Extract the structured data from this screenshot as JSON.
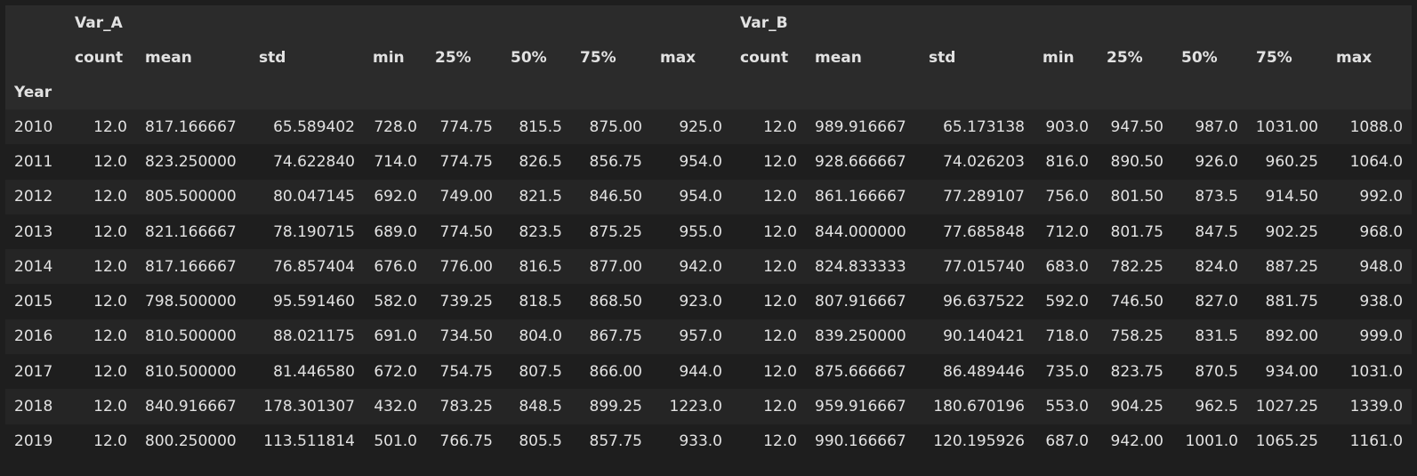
{
  "table": {
    "group_headers": [
      "Var_A",
      "Var_B"
    ],
    "stat_headers": [
      "count",
      "mean",
      "std",
      "min",
      "25%",
      "50%",
      "75%",
      "max"
    ],
    "index_name": "Year",
    "rows": [
      {
        "year": "2010",
        "a": [
          "12.0",
          "817.166667",
          "65.589402",
          "728.0",
          "774.75",
          "815.5",
          "875.00",
          "925.0"
        ],
        "b": [
          "12.0",
          "989.916667",
          "65.173138",
          "903.0",
          "947.50",
          "987.0",
          "1031.00",
          "1088.0"
        ]
      },
      {
        "year": "2011",
        "a": [
          "12.0",
          "823.250000",
          "74.622840",
          "714.0",
          "774.75",
          "826.5",
          "856.75",
          "954.0"
        ],
        "b": [
          "12.0",
          "928.666667",
          "74.026203",
          "816.0",
          "890.50",
          "926.0",
          "960.25",
          "1064.0"
        ]
      },
      {
        "year": "2012",
        "a": [
          "12.0",
          "805.500000",
          "80.047145",
          "692.0",
          "749.00",
          "821.5",
          "846.50",
          "954.0"
        ],
        "b": [
          "12.0",
          "861.166667",
          "77.289107",
          "756.0",
          "801.50",
          "873.5",
          "914.50",
          "992.0"
        ]
      },
      {
        "year": "2013",
        "a": [
          "12.0",
          "821.166667",
          "78.190715",
          "689.0",
          "774.50",
          "823.5",
          "875.25",
          "955.0"
        ],
        "b": [
          "12.0",
          "844.000000",
          "77.685848",
          "712.0",
          "801.75",
          "847.5",
          "902.25",
          "968.0"
        ]
      },
      {
        "year": "2014",
        "a": [
          "12.0",
          "817.166667",
          "76.857404",
          "676.0",
          "776.00",
          "816.5",
          "877.00",
          "942.0"
        ],
        "b": [
          "12.0",
          "824.833333",
          "77.015740",
          "683.0",
          "782.25",
          "824.0",
          "887.25",
          "948.0"
        ]
      },
      {
        "year": "2015",
        "a": [
          "12.0",
          "798.500000",
          "95.591460",
          "582.0",
          "739.25",
          "818.5",
          "868.50",
          "923.0"
        ],
        "b": [
          "12.0",
          "807.916667",
          "96.637522",
          "592.0",
          "746.50",
          "827.0",
          "881.75",
          "938.0"
        ]
      },
      {
        "year": "2016",
        "a": [
          "12.0",
          "810.500000",
          "88.021175",
          "691.0",
          "734.50",
          "804.0",
          "867.75",
          "957.0"
        ],
        "b": [
          "12.0",
          "839.250000",
          "90.140421",
          "718.0",
          "758.25",
          "831.5",
          "892.00",
          "999.0"
        ]
      },
      {
        "year": "2017",
        "a": [
          "12.0",
          "810.500000",
          "81.446580",
          "672.0",
          "754.75",
          "807.5",
          "866.00",
          "944.0"
        ],
        "b": [
          "12.0",
          "875.666667",
          "86.489446",
          "735.0",
          "823.75",
          "870.5",
          "934.00",
          "1031.0"
        ]
      },
      {
        "year": "2018",
        "a": [
          "12.0",
          "840.916667",
          "178.301307",
          "432.0",
          "783.25",
          "848.5",
          "899.25",
          "1223.0"
        ],
        "b": [
          "12.0",
          "959.916667",
          "180.670196",
          "553.0",
          "904.25",
          "962.5",
          "1027.25",
          "1339.0"
        ]
      },
      {
        "year": "2019",
        "a": [
          "12.0",
          "800.250000",
          "113.511814",
          "501.0",
          "766.75",
          "805.5",
          "857.75",
          "933.0"
        ],
        "b": [
          "12.0",
          "990.166667",
          "120.195926",
          "687.0",
          "942.00",
          "1001.0",
          "1065.25",
          "1161.0"
        ]
      }
    ]
  }
}
